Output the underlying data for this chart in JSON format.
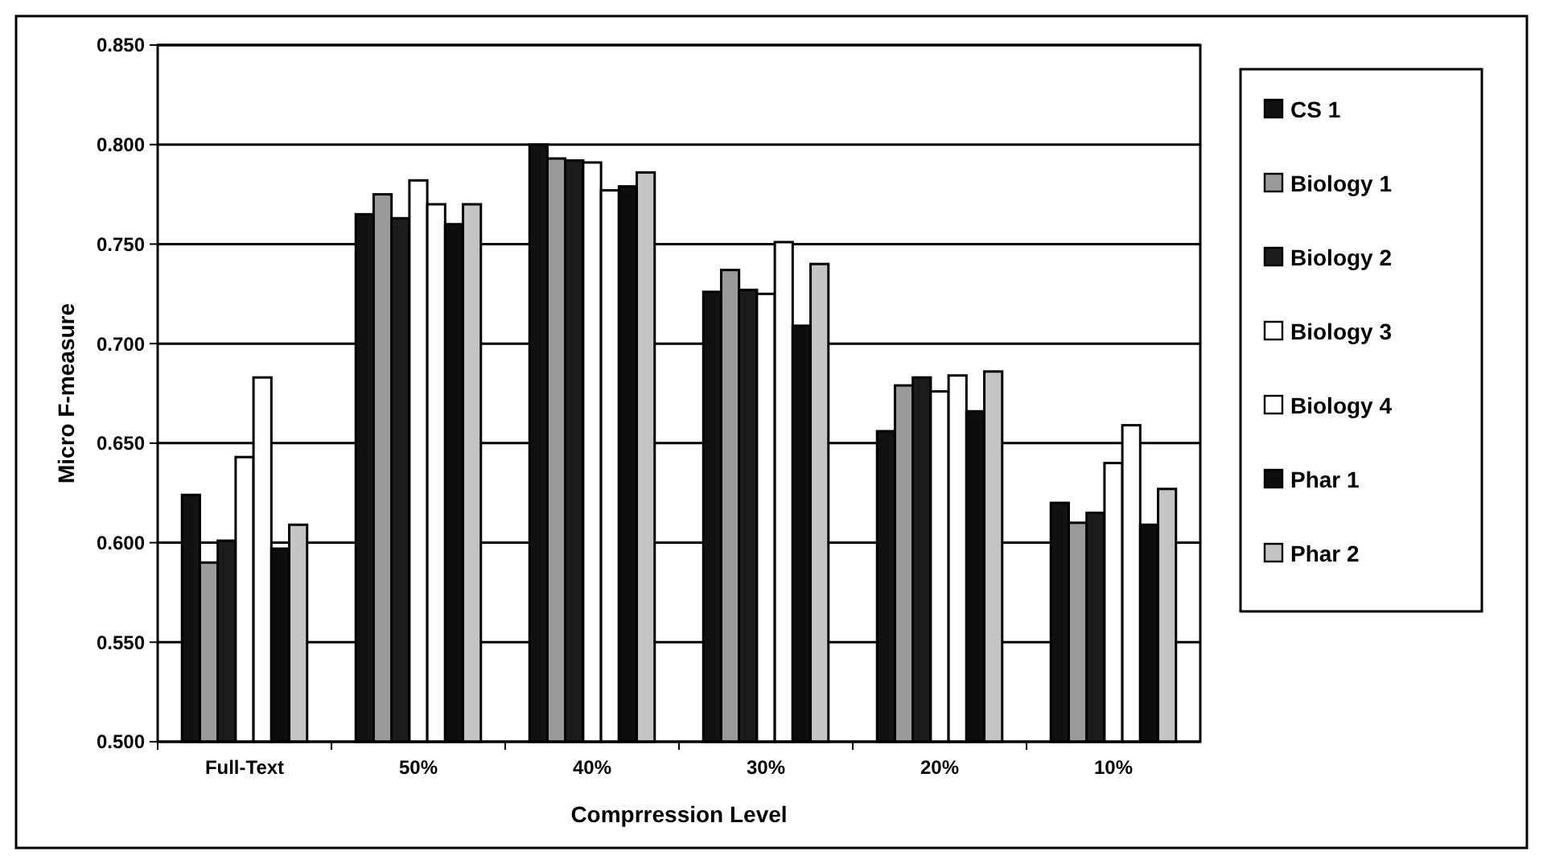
{
  "chart_data": {
    "type": "bar",
    "xlabel": "Comprression Level",
    "ylabel": "Micro F-measure",
    "categories": [
      "Full-Text",
      "50%",
      "40%",
      "30%",
      "20%",
      "10%"
    ],
    "series": [
      {
        "name": "CS 1",
        "color": "#111111",
        "values": [
          0.624,
          0.765,
          0.8,
          0.726,
          0.656,
          0.62
        ]
      },
      {
        "name": "Biology 1",
        "color": "#9a9a9a",
        "values": [
          0.59,
          0.775,
          0.793,
          0.737,
          0.679,
          0.61
        ]
      },
      {
        "name": "Biology 2",
        "color": "#1c1c1c",
        "values": [
          0.601,
          0.763,
          0.792,
          0.727,
          0.683,
          0.615
        ]
      },
      {
        "name": "Biology 3",
        "color": "#ffffff",
        "values": [
          0.643,
          0.782,
          0.791,
          0.725,
          0.676,
          0.64
        ]
      },
      {
        "name": "Biology 4",
        "color": "#fdfdfd",
        "values": [
          0.683,
          0.77,
          0.777,
          0.751,
          0.684,
          0.659
        ]
      },
      {
        "name": "Phar 1",
        "color": "#0d0d0d",
        "values": [
          0.597,
          0.76,
          0.779,
          0.709,
          0.666,
          0.609
        ]
      },
      {
        "name": "Phar 2",
        "color": "#c4c4c4",
        "values": [
          0.609,
          0.77,
          0.786,
          0.74,
          0.686,
          0.627
        ]
      }
    ],
    "ylim": [
      0.5,
      0.85
    ],
    "yticks": [
      {
        "value": 0.5,
        "label": "0.500"
      },
      {
        "value": 0.55,
        "label": "0.550"
      },
      {
        "value": 0.6,
        "label": "0.600"
      },
      {
        "value": 0.65,
        "label": "0.650"
      },
      {
        "value": 0.7,
        "label": "0.700"
      },
      {
        "value": 0.75,
        "label": "0.750"
      },
      {
        "value": 0.8,
        "label": "0.800"
      },
      {
        "value": 0.85,
        "label": "0.850"
      }
    ],
    "grid": "y",
    "legend": "right"
  }
}
